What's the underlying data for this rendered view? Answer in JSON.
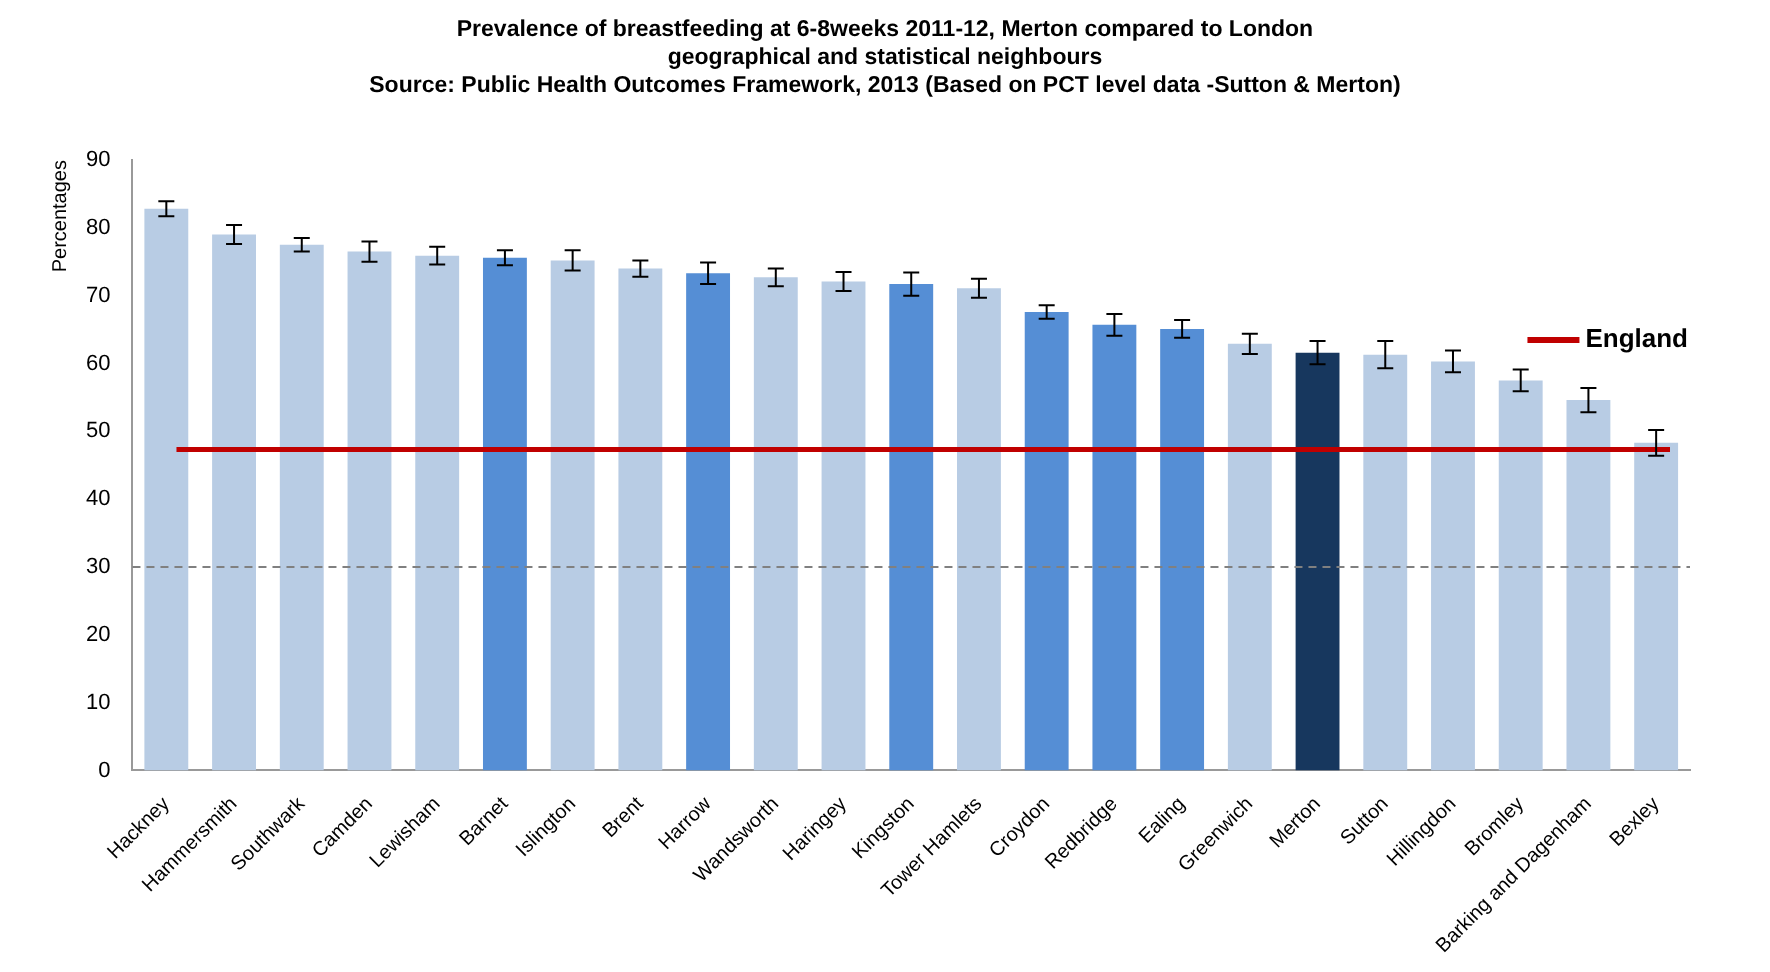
{
  "chart_data": {
    "type": "bar",
    "title": "Prevalence of breastfeeding at 6-8weeks 2011-12, Merton compared to London geographical and statistical neighbours",
    "annotations": [
      "Source: Public Health Outcomes Framework,  2013 (Based on PCT level data -Sutton & Merton)"
    ],
    "ylabel": "Percentages",
    "categories": [
      "Hackney",
      "Hammersmith",
      "Southwark",
      "Camden",
      "Lewisham",
      "Barnet",
      "Islington",
      "Brent",
      "Harrow",
      "Wandsworth",
      "Haringey",
      "Kingston",
      "Tower Hamlets",
      "Croydon",
      "Redbridge",
      "Ealing",
      "Greenwich",
      "Merton",
      "Sutton",
      "Hillingdon",
      "Bromley",
      "Barking and Dagenham",
      "Bexley"
    ],
    "values": [
      82.8,
      79.0,
      77.5,
      76.5,
      75.9,
      75.6,
      75.2,
      74.0,
      73.3,
      72.7,
      72.1,
      71.7,
      71.1,
      67.6,
      65.7,
      65.1,
      62.9,
      61.6,
      61.3,
      60.3,
      57.5,
      54.6,
      48.3
    ],
    "errors": [
      1.1,
      1.4,
      1.0,
      1.5,
      1.3,
      1.1,
      1.5,
      1.2,
      1.6,
      1.3,
      1.4,
      1.7,
      1.4,
      1.0,
      1.6,
      1.3,
      1.5,
      1.7,
      2.0,
      1.6,
      1.6,
      1.8,
      1.9
    ],
    "colors": [
      "#b8cce4",
      "#b8cce4",
      "#b8cce4",
      "#b8cce4",
      "#b8cce4",
      "#558ed5",
      "#b8cce4",
      "#b8cce4",
      "#558ed5",
      "#b8cce4",
      "#b8cce4",
      "#558ed5",
      "#b8cce4",
      "#558ed5",
      "#558ed5",
      "#558ed5",
      "#b8cce4",
      "#17375e",
      "#b8cce4",
      "#b8cce4",
      "#b8cce4",
      "#b8cce4",
      "#b8cce4"
    ],
    "ylim": [
      0,
      90
    ],
    "yticks": [
      0,
      10,
      20,
      30,
      40,
      50,
      60,
      70,
      80,
      90
    ],
    "ref_lines": [
      {
        "axis": "y",
        "value": 47.3,
        "label": "England",
        "color": "#c00000",
        "line_style": "solid"
      },
      {
        "axis": "y",
        "value": 30,
        "color": "#808080",
        "line_style": "dashed"
      }
    ],
    "legend": "right",
    "grid": false
  }
}
